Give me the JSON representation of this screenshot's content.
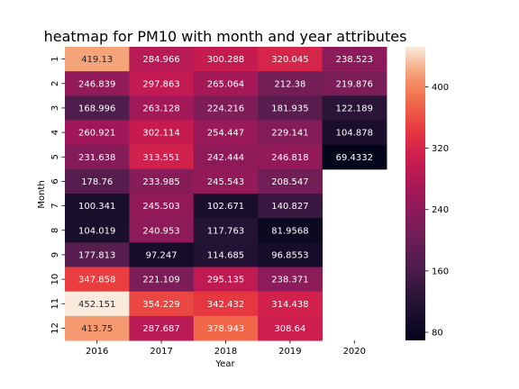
{
  "chart_data": {
    "type": "heatmap",
    "title": "heatmap for PM10 with month and year attributes",
    "xlabel": "Year",
    "ylabel": "Month",
    "x_categories": [
      "2016",
      "2017",
      "2018",
      "2019",
      "2020"
    ],
    "y_categories": [
      "1",
      "2",
      "3",
      "4",
      "5",
      "6",
      "7",
      "8",
      "9",
      "10",
      "11",
      "12"
    ],
    "values": [
      [
        419.13,
        284.966,
        300.288,
        320.045,
        238.523
      ],
      [
        246.839,
        297.863,
        265.064,
        212.38,
        219.876
      ],
      [
        168.996,
        263.128,
        224.216,
        181.935,
        122.189
      ],
      [
        260.921,
        302.114,
        254.447,
        229.141,
        104.878
      ],
      [
        231.638,
        313.551,
        242.444,
        246.818,
        69.4332
      ],
      [
        178.76,
        233.985,
        245.543,
        208.547,
        null
      ],
      [
        100.341,
        245.503,
        102.671,
        140.827,
        null
      ],
      [
        104.019,
        240.953,
        117.763,
        81.9568,
        null
      ],
      [
        177.813,
        97.247,
        114.685,
        96.8553,
        null
      ],
      [
        347.858,
        221.109,
        295.135,
        238.371,
        null
      ],
      [
        452.151,
        354.229,
        342.432,
        314.438,
        null
      ],
      [
        413.75,
        287.687,
        378.943,
        308.64,
        null
      ]
    ],
    "value_labels": [
      [
        "419.13",
        "284.966",
        "300.288",
        "320.045",
        "238.523"
      ],
      [
        "246.839",
        "297.863",
        "265.064",
        "212.38",
        "219.876"
      ],
      [
        "168.996",
        "263.128",
        "224.216",
        "181.935",
        "122.189"
      ],
      [
        "260.921",
        "302.114",
        "254.447",
        "229.141",
        "104.878"
      ],
      [
        "231.638",
        "313.551",
        "242.444",
        "246.818",
        "69.4332"
      ],
      [
        "178.76",
        "233.985",
        "245.543",
        "208.547",
        null
      ],
      [
        "100.341",
        "245.503",
        "102.671",
        "140.827",
        null
      ],
      [
        "104.019",
        "240.953",
        "117.763",
        "81.9568",
        null
      ],
      [
        "177.813",
        "97.247",
        "114.685",
        "96.8553",
        null
      ],
      [
        "347.858",
        "221.109",
        "295.135",
        "238.371",
        null
      ],
      [
        "452.151",
        "354.229",
        "342.432",
        "314.438",
        null
      ],
      [
        "413.75",
        "287.687",
        "378.943",
        "308.64",
        null
      ]
    ],
    "colorbar": {
      "vmin": 69.4332,
      "vmax": 452.151,
      "ticks": [
        80,
        160,
        240,
        320,
        400
      ],
      "colormap": "rocket"
    }
  }
}
